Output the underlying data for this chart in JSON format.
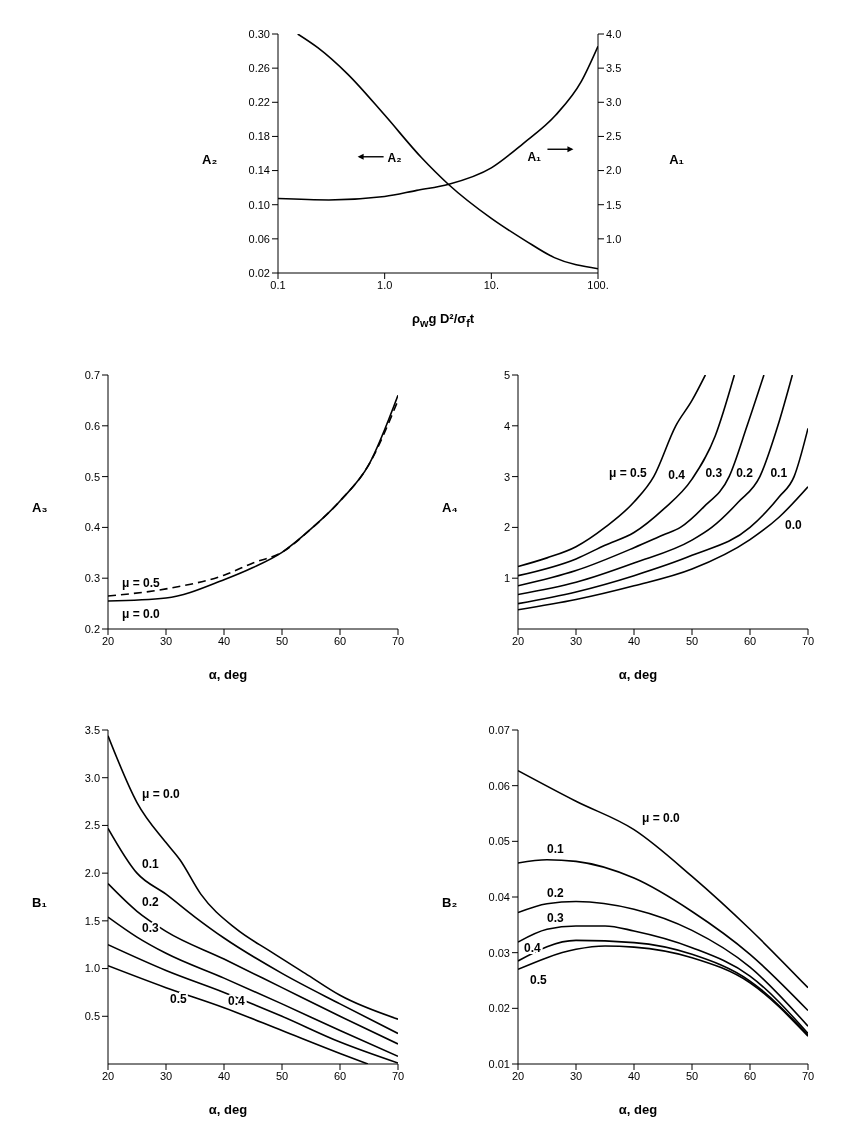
{
  "chart_data": [
    {
      "type": "line",
      "xlabel": "ρ$_{w}$g D²/σ$_{f}$t",
      "ylabel": "A₂",
      "y2label": "A₁",
      "log": "x",
      "xlim": [
        0.1,
        100
      ],
      "xticks": [
        0.1,
        {
          "value": 1,
          "label": "1.0"
        },
        {
          "value": 10,
          "label": "10."
        },
        {
          "value": 100,
          "label": "100."
        }
      ],
      "ylim": [
        0.02,
        0.3
      ],
      "yticks": [
        0.02,
        0.06,
        {
          "value": 0.1,
          "label": "0.10"
        },
        0.14,
        0.18,
        0.22,
        0.26,
        {
          "value": 0.3,
          "label": "0.30"
        }
      ],
      "y2lim": [
        0.5,
        4.0
      ],
      "y2ticks": [
        {
          "value": 1,
          "label": "1.0"
        },
        1.5,
        {
          "value": 2,
          "label": "2.0"
        },
        2.5,
        {
          "value": 3,
          "label": "3.0"
        },
        3.5,
        {
          "value": 4,
          "label": "4.0"
        }
      ],
      "series": [
        {
          "name": "A₂",
          "color": "#000000",
          "x": [
            0.153,
            0.236,
            0.45,
            1,
            2.22,
            3.95,
            10,
            20.8,
            39,
            100
          ],
          "values": [
            0.3,
            0.284,
            0.253,
            0.205,
            0.155,
            0.124,
            0.084,
            0.058,
            0.038,
            0.025
          ]
        },
        {
          "name": "A₁",
          "color": "#000000",
          "axis": "y2",
          "x": [
            0.1,
            0.3,
            1,
            2,
            4,
            10,
            20,
            40,
            70,
            100
          ],
          "values": [
            1.59,
            1.57,
            1.62,
            1.71,
            1.8,
            2.04,
            2.4,
            2.81,
            3.31,
            3.82
          ]
        }
      ]
    },
    {
      "type": "line",
      "xlabel": "α, deg",
      "ylabel": "A₃",
      "xlim": [
        20,
        70
      ],
      "xticks": [
        20,
        30,
        40,
        50,
        60,
        70
      ],
      "ylim": [
        0.2,
        0.7
      ],
      "yticks": [
        0.2,
        0.3,
        0.4,
        0.5,
        0.6,
        0.7
      ],
      "series": [
        {
          "name": "μ = 0.5",
          "color": "#000000",
          "line_style": "dashed",
          "x": [
            20,
            30,
            40,
            45,
            50,
            55,
            60,
            65,
            70
          ],
          "values": [
            0.265,
            0.279,
            0.306,
            0.33,
            0.351,
            0.397,
            0.452,
            0.524,
            0.65
          ]
        },
        {
          "name": "μ = 0.0",
          "color": "#000000",
          "line_style": "solid",
          "x": [
            20,
            30,
            40,
            45,
            50,
            55,
            60,
            65,
            70
          ],
          "values": [
            0.255,
            0.261,
            0.297,
            0.321,
            0.351,
            0.397,
            0.452,
            0.524,
            0.66
          ]
        }
      ]
    },
    {
      "type": "line",
      "xlabel": "α, deg",
      "ylabel": "A₄",
      "xlim": [
        20,
        70
      ],
      "xticks": [
        20,
        30,
        40,
        50,
        60,
        70
      ],
      "ylim": [
        0,
        5
      ],
      "yticks": [
        1,
        2,
        3,
        4,
        5
      ],
      "series": [
        {
          "name": "μ = 0.5",
          "color": "#000000",
          "x": [
            20,
            25,
            30,
            35,
            40,
            43.4,
            47.2,
            50,
            52.3
          ],
          "values": [
            1.23,
            1.4,
            1.62,
            2.0,
            2.5,
            3,
            4,
            4.5,
            5
          ]
        },
        {
          "name": "0.4",
          "color": "#000000",
          "x": [
            20,
            30,
            35,
            40,
            45,
            50,
            54,
            57.3
          ],
          "values": [
            1.05,
            1.38,
            1.65,
            1.9,
            2.35,
            2.95,
            3.8,
            5
          ]
        },
        {
          "name": "0.3",
          "color": "#000000",
          "x": [
            20,
            30,
            40,
            45,
            48,
            52,
            56.4,
            59.5,
            62.4
          ],
          "values": [
            0.85,
            1.15,
            1.6,
            1.85,
            2,
            2.4,
            3,
            4,
            5
          ]
        },
        {
          "name": "0.2",
          "color": "#000000",
          "x": [
            20,
            30,
            40,
            50,
            53.4,
            58,
            61.7,
            64.8,
            67.3
          ],
          "values": [
            0.68,
            0.92,
            1.3,
            1.75,
            2,
            2.5,
            3,
            4,
            5
          ]
        },
        {
          "name": "0.1",
          "color": "#000000",
          "x": [
            20,
            30,
            40,
            50,
            60,
            65,
            67.6,
            70
          ],
          "values": [
            0.5,
            0.73,
            1.05,
            1.45,
            2,
            2.6,
            3,
            3.95
          ]
        },
        {
          "name": "0.0",
          "color": "#000000",
          "x": [
            20,
            30,
            40,
            50,
            60,
            65,
            70
          ],
          "values": [
            0.38,
            0.58,
            0.85,
            1.18,
            1.76,
            2.2,
            2.8
          ]
        }
      ]
    },
    {
      "type": "line",
      "xlabel": "α, deg",
      "ylabel": "B₁",
      "xlim": [
        20,
        70
      ],
      "xticks": [
        20,
        30,
        40,
        50,
        60,
        70
      ],
      "ylim": [
        0,
        3.5
      ],
      "yticks": [
        0.5,
        {
          "value": 1,
          "label": "1.0"
        },
        1.5,
        {
          "value": 2,
          "label": "2.0"
        },
        2.5,
        {
          "value": 3,
          "label": "3.0"
        },
        3.5
      ],
      "series": [
        {
          "name": "μ = 0.0",
          "color": "#000000",
          "x": [
            20,
            25,
            30,
            32.4,
            36,
            42,
            48,
            54,
            60,
            70
          ],
          "values": [
            3.44,
            2.74,
            2.32,
            2.14,
            1.78,
            1.42,
            1.18,
            0.95,
            0.72,
            0.47
          ]
        },
        {
          "name": "0.1",
          "color": "#000000",
          "x": [
            20,
            25,
            30,
            35,
            40,
            50,
            60,
            70
          ],
          "values": [
            2.47,
            2.0,
            1.78,
            1.54,
            1.32,
            0.95,
            0.63,
            0.32
          ]
        },
        {
          "name": "0.2",
          "color": "#000000",
          "x": [
            20,
            25,
            30,
            40,
            50,
            60,
            70
          ],
          "values": [
            1.89,
            1.6,
            1.39,
            1.1,
            0.8,
            0.5,
            0.21
          ]
        },
        {
          "name": "0.3",
          "color": "#000000",
          "x": [
            20,
            25,
            30,
            40,
            50,
            60,
            70
          ],
          "values": [
            1.54,
            1.33,
            1.16,
            0.9,
            0.63,
            0.35,
            0.08
          ]
        },
        {
          "name": "0.4",
          "color": "#000000",
          "x": [
            20,
            30,
            40,
            50,
            60,
            70
          ],
          "values": [
            1.25,
            0.98,
            0.75,
            0.5,
            0.23,
            0.01
          ]
        },
        {
          "name": "0.5",
          "color": "#000000",
          "x": [
            20,
            30,
            40,
            50,
            60,
            64.8
          ],
          "values": [
            1.03,
            0.8,
            0.59,
            0.35,
            0.11,
            0
          ]
        }
      ]
    },
    {
      "type": "line",
      "xlabel": "α, deg",
      "ylabel": "B₂",
      "xlim": [
        20,
        70
      ],
      "xticks": [
        20,
        30,
        40,
        50,
        60,
        70
      ],
      "ylim": [
        0.01,
        0.07
      ],
      "yticks": [
        0.01,
        0.02,
        0.03,
        0.04,
        0.05,
        0.06,
        0.07
      ],
      "series": [
        {
          "name": "μ = 0.0",
          "color": "#000000",
          "x": [
            20,
            30,
            40,
            50,
            60,
            70
          ],
          "values": [
            0.0627,
            0.0572,
            0.0521,
            0.0437,
            0.0342,
            0.0237
          ]
        },
        {
          "name": "0.1",
          "color": "#000000",
          "x": [
            20,
            25,
            30,
            40,
            50,
            60,
            70
          ],
          "values": [
            0.0461,
            0.0467,
            0.0464,
            0.0434,
            0.0374,
            0.0297,
            0.0196
          ]
        },
        {
          "name": "0.2",
          "color": "#000000",
          "x": [
            20,
            25,
            30,
            40,
            50,
            60,
            70
          ],
          "values": [
            0.0372,
            0.0388,
            0.0392,
            0.0378,
            0.034,
            0.0274,
            0.0168
          ]
        },
        {
          "name": "0.3",
          "color": "#000000",
          "x": [
            20,
            25,
            30,
            35,
            40,
            50,
            60,
            70
          ],
          "values": [
            0.0319,
            0.0342,
            0.0348,
            0.0348,
            0.0339,
            0.0309,
            0.0258,
            0.0155
          ]
        },
        {
          "name": "0.4",
          "color": "#000000",
          "x": [
            20,
            30,
            40,
            50,
            60,
            70
          ],
          "values": [
            0.0285,
            0.0322,
            0.0318,
            0.0297,
            0.0249,
            0.0152
          ]
        },
        {
          "name": "0.5",
          "color": "#000000",
          "x": [
            20,
            30,
            35,
            40,
            50,
            60,
            70
          ],
          "values": [
            0.027,
            0.0306,
            0.0312,
            0.031,
            0.0291,
            0.0246,
            0.015
          ]
        }
      ]
    }
  ]
}
